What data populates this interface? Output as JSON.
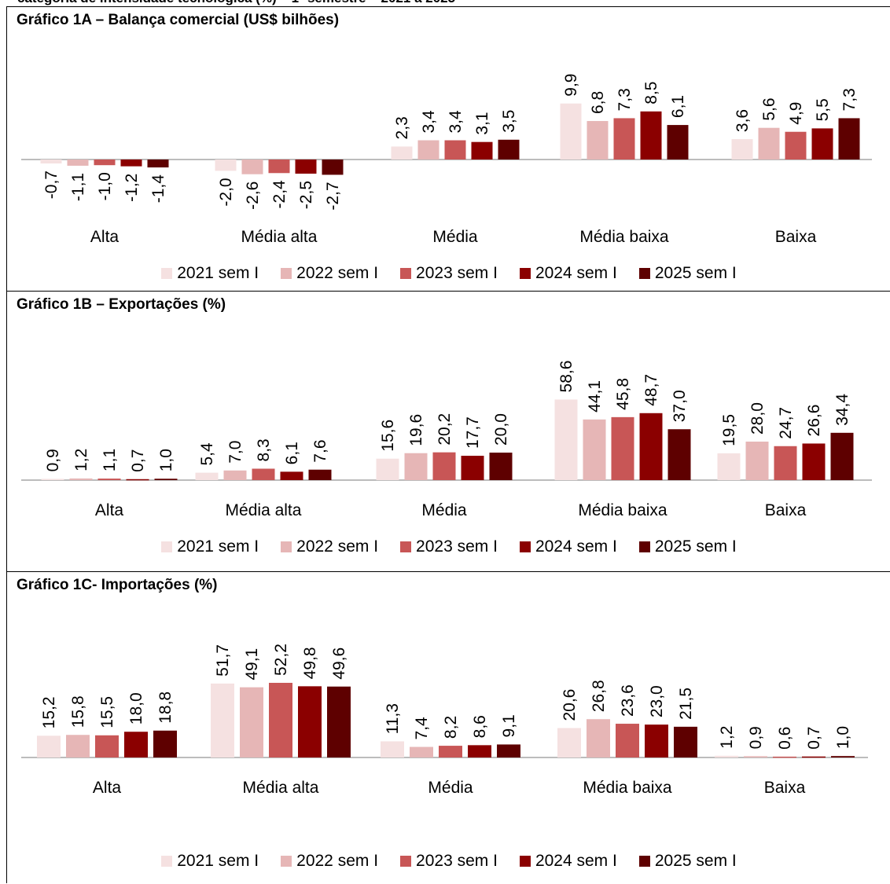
{
  "chart_data": [
    {
      "type": "bar",
      "title": "Gráfico 1A – Balança comercial (US$ bilhões)",
      "categories": [
        "Alta",
        "Média alta",
        "Média",
        "Média baixa",
        "Baixa"
      ],
      "series": [
        {
          "name": "2021 sem I",
          "values": [
            -0.7,
            -2.0,
            2.3,
            9.9,
            3.6
          ],
          "labels": [
            "-0,7",
            "-2,0",
            "2,3",
            "9,9",
            "3,6"
          ]
        },
        {
          "name": "2022 sem I",
          "values": [
            -1.1,
            -2.6,
            3.4,
            6.8,
            5.6
          ],
          "labels": [
            "-1,1",
            "-2,6",
            "3,4",
            "6,8",
            "5,6"
          ]
        },
        {
          "name": "2023 sem I",
          "values": [
            -1.0,
            -2.4,
            3.4,
            7.3,
            4.9
          ],
          "labels": [
            "-1,0",
            "-2,4",
            "3,4",
            "7,3",
            "4,9"
          ]
        },
        {
          "name": "2024 sem I",
          "values": [
            -1.2,
            -2.5,
            3.1,
            8.5,
            5.5
          ],
          "labels": [
            "-1,2",
            "-2,5",
            "3,1",
            "8,5",
            "5,5"
          ]
        },
        {
          "name": "2025 sem I",
          "values": [
            -1.4,
            -2.7,
            3.5,
            6.1,
            7.3
          ],
          "labels": [
            "-1,4",
            "-2,7",
            "3,5",
            "6,1",
            "7,3"
          ]
        }
      ],
      "legend": "bottom"
    },
    {
      "type": "bar",
      "title": "Gráfico 1B – Exportações (%)",
      "categories": [
        "Alta",
        "Média alta",
        "Média",
        "Média baixa",
        "Baixa"
      ],
      "series": [
        {
          "name": "2021 sem I",
          "values": [
            0.9,
            5.4,
            15.6,
            58.6,
            19.5
          ],
          "labels": [
            "0,9",
            "5,4",
            "15,6",
            "58,6",
            "19,5"
          ]
        },
        {
          "name": "2022 sem I",
          "values": [
            1.2,
            7.0,
            19.6,
            44.1,
            28.0
          ],
          "labels": [
            "1,2",
            "7,0",
            "19,6",
            "44,1",
            "28,0"
          ]
        },
        {
          "name": "2023 sem I",
          "values": [
            1.1,
            8.3,
            20.2,
            45.8,
            24.7
          ],
          "labels": [
            "1,1",
            "8,3",
            "20,2",
            "45,8",
            "24,7"
          ]
        },
        {
          "name": "2024 sem I",
          "values": [
            0.7,
            6.1,
            17.7,
            48.7,
            26.6
          ],
          "labels": [
            "0,7",
            "6,1",
            "17,7",
            "48,7",
            "26,6"
          ]
        },
        {
          "name": "2025 sem I",
          "values": [
            1.0,
            7.6,
            20.0,
            37.0,
            34.4
          ],
          "labels": [
            "1,0",
            "7,6",
            "20,0",
            "37,0",
            "34,4"
          ]
        }
      ],
      "legend": "bottom"
    },
    {
      "type": "bar",
      "title": "Gráfico 1C-  Importações (%)",
      "categories": [
        "Alta",
        "Média alta",
        "Média",
        "Média baixa",
        "Baixa"
      ],
      "series": [
        {
          "name": "2021 sem I",
          "values": [
            15.2,
            51.7,
            11.3,
            20.6,
            1.2
          ],
          "labels": [
            "15,2",
            "51,7",
            "11,3",
            "20,6",
            "1,2"
          ]
        },
        {
          "name": "2022 sem I",
          "values": [
            15.8,
            49.1,
            7.4,
            26.8,
            0.9
          ],
          "labels": [
            "15,8",
            "49,1",
            "7,4",
            "26,8",
            "0,9"
          ]
        },
        {
          "name": "2023 sem I",
          "values": [
            15.5,
            52.2,
            8.2,
            23.6,
            0.6
          ],
          "labels": [
            "15,5",
            "52,2",
            "8,2",
            "23,6",
            "0,6"
          ]
        },
        {
          "name": "2024 sem I",
          "values": [
            18.0,
            49.8,
            8.6,
            23.0,
            0.7
          ],
          "labels": [
            "18,0",
            "49,8",
            "8,6",
            "23,0",
            "0,7"
          ]
        },
        {
          "name": "2025 sem I",
          "values": [
            18.8,
            49.6,
            9.1,
            21.5,
            1.0
          ],
          "labels": [
            "18,8",
            "49,6",
            "9,1",
            "21,5",
            "1,0"
          ]
        }
      ],
      "legend": "bottom"
    }
  ],
  "colors": {
    "2021 sem I": "#f5e1e1",
    "2022 sem I": "#e6b6b6",
    "2023 sem I": "#c85656",
    "2024 sem I": "#8b0000",
    "2025 sem I": "#5e0000",
    "axis": "#a6a6a6"
  }
}
